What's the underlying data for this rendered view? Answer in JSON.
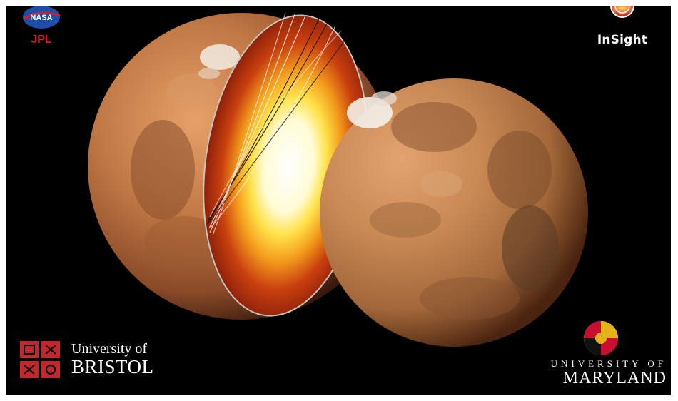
{
  "logos": {
    "nasa": {
      "text": "NASA",
      "subtext": "JPL"
    },
    "insight": {
      "text": "InSight"
    },
    "bristol": {
      "line1": "University of",
      "line2": "BRISTOL"
    },
    "maryland": {
      "line1": "UNIVERSITY OF",
      "line2": "MARYLAND"
    }
  },
  "colors": {
    "background": "#000000",
    "mars_surface": "#b86a3a",
    "core_center": "#fffbe0",
    "core_edge": "#8a1d0c",
    "jpl_red": "#d0202a",
    "nasa_blue": "#1e4ea8"
  }
}
